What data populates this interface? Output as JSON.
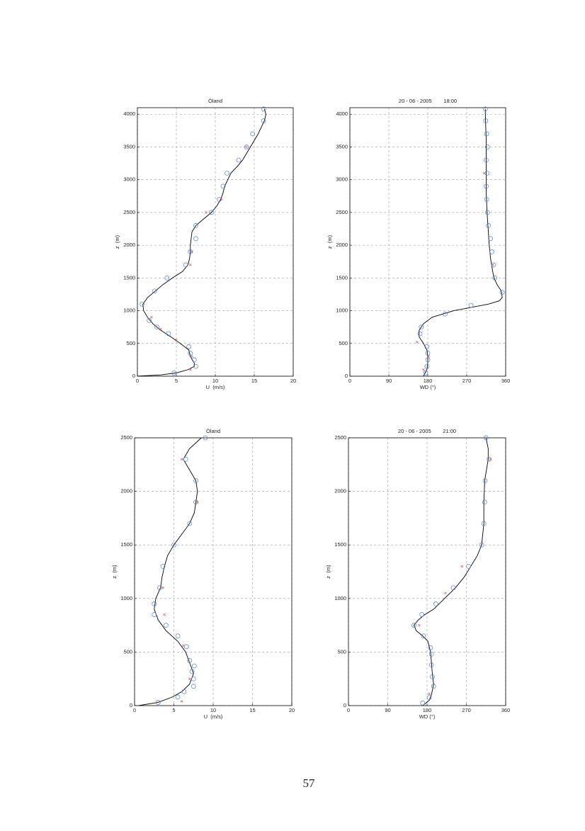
{
  "chart_data": [
    {
      "type": "line",
      "title": "Öland",
      "xlabel": "U  (m/s)",
      "ylabel": "z  (m)",
      "xlim": [
        0,
        20
      ],
      "xticks": [
        0,
        5,
        10,
        15,
        20
      ],
      "ylim": [
        0,
        4100
      ],
      "yticks": [
        0,
        500,
        1000,
        1500,
        2000,
        2500,
        3000,
        3500,
        4000
      ],
      "grid": true,
      "series": [
        {
          "style": "line",
          "color": "#000000",
          "x": [
            0,
            3,
            5,
            6.5,
            7.3,
            7.3,
            6.8,
            6.6,
            5.5,
            4.3,
            3,
            2,
            1.3,
            0.8,
            0.7,
            1.3,
            2.3,
            3.3,
            4.5,
            5.8,
            6.5,
            6.7,
            6.8,
            6.8,
            6.9,
            7,
            7.5,
            8.5,
            9.5,
            10.2,
            10.7,
            11,
            11.2,
            11.6,
            12,
            12.8,
            13.5,
            14,
            14.5,
            15,
            15.5,
            15.9,
            16.3,
            16.5,
            16.3
          ],
          "y": [
            0,
            20,
            50,
            100,
            150,
            200,
            300,
            400,
            500,
            600,
            700,
            800,
            900,
            1000,
            1100,
            1200,
            1300,
            1400,
            1500,
            1600,
            1700,
            1800,
            1900,
            2000,
            2100,
            2200,
            2300,
            2400,
            2500,
            2600,
            2700,
            2800,
            2900,
            3000,
            3100,
            3200,
            3300,
            3400,
            3500,
            3600,
            3700,
            3800,
            3900,
            4000,
            4080
          ]
        },
        {
          "style": "circle",
          "color": "#4a7fd4",
          "x": [
            4.7,
            7.5,
            7.3,
            6.8,
            6.6,
            4,
            2.5,
            1.5,
            0.6,
            2.2,
            3.8,
            6.2,
            6.8,
            7.5,
            7.5,
            9.5,
            10.5,
            11,
            11.5,
            13,
            14,
            14.8,
            16.2,
            16.2
          ],
          "y": [
            50,
            150,
            250,
            350,
            450,
            650,
            750,
            850,
            1100,
            1300,
            1500,
            1700,
            1900,
            2100,
            2300,
            2500,
            2700,
            2900,
            3100,
            3300,
            3500,
            3700,
            3900,
            4080
          ]
        },
        {
          "style": "cross",
          "color": "#e05050",
          "x": [
            6.8,
            7,
            5,
            3,
            1.8,
            6.8,
            7,
            8.8,
            10.8,
            14
          ],
          "y": [
            100,
            300,
            550,
            720,
            900,
            1700,
            1900,
            2500,
            2700,
            3500
          ]
        }
      ]
    },
    {
      "type": "line",
      "title": "20 - 06 - 2005        18:00",
      "xlabel": "WD (°)",
      "ylabel": "z  (m)",
      "xlim": [
        0,
        360
      ],
      "xticks": [
        0,
        90,
        180,
        270,
        360
      ],
      "ylim": [
        0,
        4100
      ],
      "yticks": [
        0,
        500,
        1000,
        1500,
        2000,
        2500,
        3000,
        3500,
        4000
      ],
      "grid": true,
      "series": [
        {
          "style": "line",
          "color": "#000000",
          "x": [
            170,
            178,
            180,
            180,
            178,
            170,
            160,
            160,
            170,
            190,
            215,
            240,
            280,
            320,
            345,
            352,
            350,
            340,
            333,
            330,
            325,
            322,
            320,
            317,
            315,
            315,
            315,
            315,
            313,
            313
          ],
          "y": [
            0,
            100,
            200,
            300,
            400,
            500,
            600,
            700,
            800,
            900,
            950,
            1000,
            1050,
            1100,
            1150,
            1200,
            1300,
            1400,
            1500,
            1600,
            1800,
            2000,
            2200,
            2500,
            2800,
            3000,
            3300,
            3600,
            4000,
            4080
          ]
        },
        {
          "style": "circle",
          "color": "#4a7fd4",
          "x": [
            175,
            178,
            180,
            180,
            178,
            162,
            165,
            220,
            280,
            352,
            335,
            332,
            328,
            325,
            320,
            318,
            316,
            315,
            317,
            315,
            318,
            316,
            314,
            313
          ],
          "y": [
            50,
            150,
            250,
            350,
            450,
            650,
            750,
            950,
            1080,
            1280,
            1500,
            1700,
            1900,
            2100,
            2300,
            2500,
            2700,
            2900,
            3100,
            3300,
            3500,
            3700,
            3900,
            4080
          ]
        },
        {
          "style": "cross",
          "color": "#e05050",
          "x": [
            170,
            182,
            155,
            330,
            310
          ],
          "y": [
            100,
            300,
            520,
            1700,
            3100
          ]
        }
      ]
    },
    {
      "type": "line",
      "title": "Öland",
      "xlabel": "U  (m/s)",
      "ylabel": "z  (m)",
      "xlim": [
        0,
        20
      ],
      "xticks": [
        0,
        5,
        10,
        15,
        20
      ],
      "ylim": [
        0,
        2500
      ],
      "yticks": [
        0,
        500,
        1000,
        1500,
        2000,
        2500
      ],
      "grid": true,
      "series": [
        {
          "style": "line",
          "color": "#000000",
          "x": [
            0.5,
            3,
            4.8,
            6,
            7,
            7.5,
            7,
            6.5,
            5.5,
            4,
            3,
            2.5,
            2.7,
            3.3,
            3.5,
            3.8,
            4.2,
            5,
            6,
            7,
            7.6,
            7.8,
            8,
            7.8,
            7,
            6.2,
            7,
            8.5
          ],
          "y": [
            0,
            30,
            80,
            130,
            200,
            300,
            400,
            500,
            600,
            700,
            800,
            900,
            1000,
            1100,
            1200,
            1300,
            1400,
            1500,
            1600,
            1700,
            1800,
            1900,
            2000,
            2100,
            2200,
            2300,
            2400,
            2500
          ]
        },
        {
          "style": "circle",
          "color": "#4a7fd4",
          "x": [
            3,
            5.5,
            6.3,
            7.5,
            7.5,
            7.3,
            7.6,
            7,
            6.6,
            5.5,
            4,
            2.5,
            2.5,
            3.2,
            3.6,
            5,
            7,
            7.8,
            7.8,
            6.5,
            9
          ],
          "y": [
            30,
            80,
            130,
            180,
            250,
            320,
            370,
            420,
            550,
            650,
            750,
            850,
            950,
            1100,
            1300,
            1500,
            1700,
            1900,
            2100,
            2300,
            2500
          ]
        },
        {
          "style": "cross",
          "color": "#e05050",
          "x": [
            6,
            7,
            6.2,
            3.8,
            3.6,
            6,
            8
          ],
          "y": [
            40,
            250,
            560,
            850,
            1100,
            2300,
            1900
          ]
        }
      ]
    },
    {
      "type": "line",
      "title": "20 - 06 - 2005        21:00",
      "xlabel": "WD (°)",
      "ylabel": "z  (m)",
      "xlim": [
        0,
        360
      ],
      "xticks": [
        0,
        90,
        180,
        270,
        360
      ],
      "ylim": [
        0,
        2500
      ],
      "yticks": [
        0,
        500,
        1000,
        1500,
        2000,
        2500
      ],
      "grid": true,
      "series": [
        {
          "style": "line",
          "color": "#000000",
          "x": [
            170,
            185,
            190,
            195,
            192,
            190,
            188,
            182,
            170,
            155,
            150,
            160,
            175,
            195,
            220,
            245,
            265,
            280,
            295,
            305,
            310,
            310,
            312,
            320,
            320,
            315
          ],
          "y": [
            0,
            50,
            100,
            200,
            300,
            400,
            500,
            600,
            650,
            700,
            750,
            800,
            850,
            900,
            1000,
            1100,
            1200,
            1300,
            1400,
            1500,
            1700,
            1900,
            2100,
            2300,
            2400,
            2500
          ]
        },
        {
          "style": "circle",
          "color": "#4a7fd4",
          "x": [
            170,
            185,
            195,
            192,
            190,
            190,
            188,
            172,
            150,
            168,
            200,
            240,
            275,
            305,
            310,
            312,
            313,
            322,
            315
          ],
          "y": [
            25,
            75,
            180,
            270,
            380,
            480,
            540,
            650,
            750,
            850,
            950,
            1100,
            1300,
            1500,
            1700,
            1900,
            2100,
            2300,
            2500
          ]
        },
        {
          "style": "cross",
          "color": "#e05050",
          "x": [
            185,
            162,
            260,
            222,
            325
          ],
          "y": [
            110,
            750,
            1300,
            1050,
            2300
          ]
        }
      ]
    }
  ],
  "page": {
    "number": "57"
  }
}
